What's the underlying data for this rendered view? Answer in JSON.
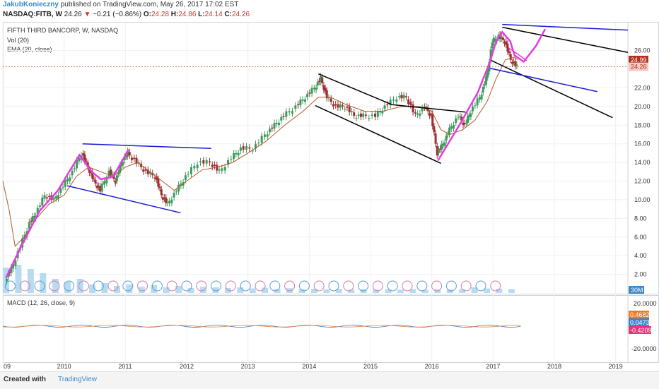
{
  "header": {
    "author": "JakubKonieczny",
    "published": "published on TradingView.com, May 26, 2017 17:02 EST",
    "symbol": "NASDAQ:FITB, W",
    "last": "24.26",
    "change": "−0.21 (−0.86%)",
    "ohlc": {
      "o": "24.28",
      "h": "24.86",
      "l": "24.14",
      "c": "24.26"
    }
  },
  "legend": {
    "name": "FIFTH THIRD BANCORP, W, NASDAQ",
    "vol": "Vol (20)",
    "ema": "EMA (20, close)",
    "macd": "MACD (12, 26, close, 9)"
  },
  "badges": {
    "price_high": "24.99",
    "price_last": "24.26",
    "volume": "30M",
    "macd_a": "0.4682",
    "macd_b": "0.0473",
    "macd_c": "-0.4209"
  },
  "footer": {
    "created": "Created with",
    "brand": "TradingView"
  },
  "colors": {
    "trend_black": "#000000",
    "trend_blue": "#1a1ad6",
    "path_magenta": "#e43ce0",
    "ema": "#b5582a",
    "up": "#3d9a5b",
    "down": "#9b2f2f",
    "volume": "#9fd0ee",
    "macd": "#4a73b8",
    "signal": "#e0874f"
  },
  "chart_data": {
    "type": "candlestick",
    "title": "FIFTH THIRD BANCORP, W, NASDAQ",
    "x_ticks": [
      "09",
      "2010",
      "2011",
      "2012",
      "2013",
      "2014",
      "2015",
      "2016",
      "2017",
      "2018",
      "2019"
    ],
    "y_ticks": [
      "2.00",
      "4.00",
      "6.00",
      "8.00",
      "10.00",
      "12.00",
      "14.00",
      "16.00",
      "18.00",
      "20.00",
      "22.00",
      "26.00"
    ],
    "ylim": [
      0,
      29
    ],
    "xlim": [
      2009.0,
      2019.2
    ],
    "macd_ticks": [
      "20.0000",
      "-20.0000"
    ],
    "price_path": [
      [
        2009.05,
        1.5
      ],
      [
        2009.15,
        2.5
      ],
      [
        2009.3,
        5
      ],
      [
        2009.45,
        7.5
      ],
      [
        2009.55,
        8.5
      ],
      [
        2009.7,
        10.5
      ],
      [
        2009.85,
        10
      ],
      [
        2010.0,
        11.5
      ],
      [
        2010.15,
        13
      ],
      [
        2010.3,
        15
      ],
      [
        2010.4,
        13.5
      ],
      [
        2010.5,
        12
      ],
      [
        2010.6,
        11
      ],
      [
        2010.75,
        13
      ],
      [
        2010.85,
        12
      ],
      [
        2010.95,
        14
      ],
      [
        2011.05,
        15
      ],
      [
        2011.2,
        14
      ],
      [
        2011.35,
        13
      ],
      [
        2011.5,
        12.5
      ],
      [
        2011.6,
        10.5
      ],
      [
        2011.7,
        9.5
      ],
      [
        2011.85,
        11
      ],
      [
        2012.0,
        12.5
      ],
      [
        2012.2,
        14
      ],
      [
        2012.4,
        14
      ],
      [
        2012.55,
        13
      ],
      [
        2012.75,
        14.5
      ],
      [
        2012.9,
        15.5
      ],
      [
        2013.1,
        15.5
      ],
      [
        2013.3,
        17
      ],
      [
        2013.45,
        18
      ],
      [
        2013.6,
        19
      ],
      [
        2013.8,
        20
      ],
      [
        2013.95,
        21
      ],
      [
        2014.1,
        22
      ],
      [
        2014.2,
        23
      ],
      [
        2014.3,
        21
      ],
      [
        2014.45,
        20
      ],
      [
        2014.6,
        20
      ],
      [
        2014.75,
        19
      ],
      [
        2014.9,
        19
      ],
      [
        2015.1,
        19
      ],
      [
        2015.25,
        20
      ],
      [
        2015.45,
        21
      ],
      [
        2015.6,
        21
      ],
      [
        2015.75,
        19
      ],
      [
        2015.9,
        20
      ],
      [
        2016.0,
        19
      ],
      [
        2016.1,
        15
      ],
      [
        2016.2,
        16
      ],
      [
        2016.3,
        17.5
      ],
      [
        2016.45,
        19
      ],
      [
        2016.55,
        18
      ],
      [
        2016.65,
        19.5
      ],
      [
        2016.8,
        21
      ],
      [
        2016.9,
        23
      ],
      [
        2017.0,
        27
      ],
      [
        2017.1,
        27.5
      ],
      [
        2017.2,
        27
      ],
      [
        2017.3,
        25
      ],
      [
        2017.4,
        24.26
      ]
    ],
    "ema_path": [
      [
        2009.0,
        12
      ],
      [
        2009.1,
        9
      ],
      [
        2009.2,
        5
      ],
      [
        2009.35,
        6
      ],
      [
        2009.55,
        8
      ],
      [
        2009.75,
        9.5
      ],
      [
        2010.0,
        10.5
      ],
      [
        2010.2,
        12.5
      ],
      [
        2010.4,
        13.5
      ],
      [
        2010.6,
        13
      ],
      [
        2010.8,
        12.5
      ],
      [
        2011.0,
        13.5
      ],
      [
        2011.2,
        14
      ],
      [
        2011.4,
        13
      ],
      [
        2011.6,
        12
      ],
      [
        2011.8,
        11
      ],
      [
        2012.0,
        12
      ],
      [
        2012.25,
        13.2
      ],
      [
        2012.5,
        13.5
      ],
      [
        2012.75,
        14
      ],
      [
        2013.0,
        15
      ],
      [
        2013.3,
        16.3
      ],
      [
        2013.6,
        18
      ],
      [
        2013.9,
        19.5
      ],
      [
        2014.15,
        21
      ],
      [
        2014.35,
        21
      ],
      [
        2014.6,
        20.2
      ],
      [
        2014.9,
        19.5
      ],
      [
        2015.2,
        19.5
      ],
      [
        2015.5,
        20
      ],
      [
        2015.8,
        20
      ],
      [
        2016.0,
        19.5
      ],
      [
        2016.15,
        17.5
      ],
      [
        2016.3,
        17
      ],
      [
        2016.5,
        17.5
      ],
      [
        2016.7,
        18.5
      ],
      [
        2016.9,
        20.5
      ],
      [
        2017.05,
        23
      ],
      [
        2017.2,
        25
      ],
      [
        2017.35,
        25.3
      ],
      [
        2017.4,
        25
      ]
    ],
    "volume": [
      0.9,
      1.0,
      0.85,
      0.7,
      0.5,
      0.4,
      0.5,
      0.3,
      0.35,
      0.25,
      0.3,
      0.22,
      0.28,
      0.2,
      0.25,
      0.18,
      0.22,
      0.2,
      0.18,
      0.2,
      0.16,
      0.19,
      0.15,
      0.17,
      0.14,
      0.15,
      0.13,
      0.15,
      0.12,
      0.14,
      0.12,
      0.13,
      0.12,
      0.14,
      0.11,
      0.13,
      0.12,
      0.14,
      0.2,
      0.16,
      0.15,
      0.14
    ],
    "annotations": [
      {
        "kind": "line",
        "color": "blue",
        "from": [
          2010.3,
          16
        ],
        "to": [
          2012.4,
          15.5
        ]
      },
      {
        "kind": "line",
        "color": "blue",
        "from": [
          2010.05,
          11.5
        ],
        "to": [
          2011.9,
          8.6
        ]
      },
      {
        "kind": "line",
        "color": "black",
        "from": [
          2014.15,
          23.5
        ],
        "to": [
          2015.35,
          20.2
        ]
      },
      {
        "kind": "line",
        "color": "black",
        "from": [
          2015.35,
          20.2
        ],
        "to": [
          2016.55,
          19.4
        ]
      },
      {
        "kind": "line",
        "color": "black",
        "from": [
          2014.1,
          20.1
        ],
        "to": [
          2016.15,
          13.9
        ]
      },
      {
        "kind": "line",
        "color": "blue",
        "from": [
          2017.15,
          28.8
        ],
        "to": [
          2019.2,
          28.2
        ]
      },
      {
        "kind": "line",
        "color": "black",
        "from": [
          2017.15,
          28.5
        ],
        "to": [
          2019.2,
          25.8
        ]
      },
      {
        "kind": "line",
        "color": "black",
        "from": [
          2016.95,
          25
        ],
        "to": [
          2018.95,
          18.8
        ]
      },
      {
        "kind": "line",
        "color": "blue",
        "from": [
          2016.95,
          24.1
        ],
        "to": [
          2018.7,
          21.6
        ]
      }
    ]
  }
}
